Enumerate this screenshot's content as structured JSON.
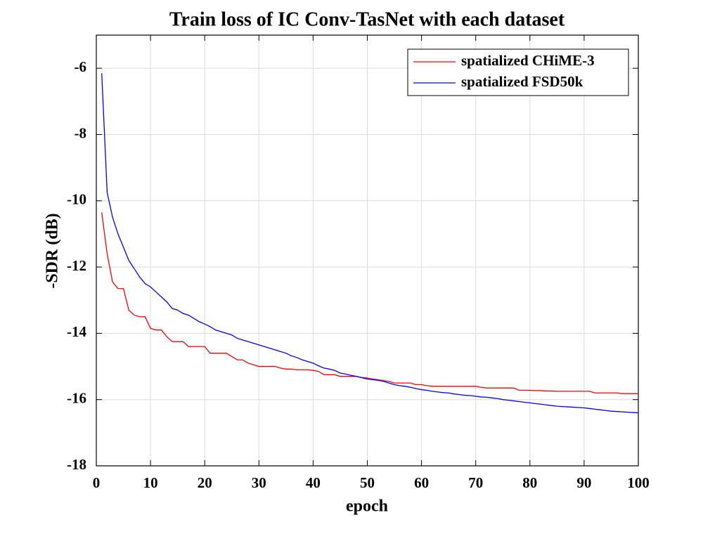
{
  "chart_data": {
    "type": "line",
    "title": "Train loss of IC Conv-TasNet with each dataset",
    "x_label": "epoch",
    "y_label": "-SDR (dB)",
    "x": [
      1,
      2,
      3,
      4,
      5,
      6,
      7,
      8,
      9,
      10,
      11,
      12,
      13,
      14,
      15,
      16,
      17,
      18,
      19,
      20,
      21,
      22,
      23,
      24,
      25,
      26,
      27,
      28,
      29,
      30,
      31,
      32,
      33,
      34,
      35,
      36,
      37,
      38,
      39,
      40,
      41,
      42,
      43,
      44,
      45,
      46,
      47,
      48,
      49,
      50,
      51,
      52,
      53,
      54,
      55,
      56,
      57,
      58,
      59,
      60,
      61,
      62,
      63,
      64,
      65,
      66,
      67,
      68,
      69,
      70,
      71,
      72,
      73,
      74,
      75,
      76,
      77,
      78,
      79,
      80,
      81,
      82,
      83,
      84,
      85,
      86,
      87,
      88,
      89,
      90,
      91,
      92,
      93,
      94,
      95,
      96,
      97,
      98,
      99,
      100
    ],
    "series": [
      {
        "name": "spatialized CHiME-3",
        "color": "#ff0000",
        "values": [
          -10.35,
          -11.6,
          -12.45,
          -12.65,
          -12.65,
          -13.3,
          -13.45,
          -13.5,
          -13.5,
          -13.85,
          -13.9,
          -13.9,
          -14.1,
          -14.25,
          -14.25,
          -14.25,
          -14.4,
          -14.4,
          -14.4,
          -14.4,
          -14.6,
          -14.6,
          -14.6,
          -14.6,
          -14.7,
          -14.8,
          -14.8,
          -14.9,
          -14.95,
          -15.0,
          -15.0,
          -15.0,
          -15.0,
          -15.05,
          -15.08,
          -15.08,
          -15.1,
          -15.1,
          -15.1,
          -15.12,
          -15.15,
          -15.25,
          -15.25,
          -15.25,
          -15.3,
          -15.3,
          -15.3,
          -15.3,
          -15.33,
          -15.35,
          -15.38,
          -15.4,
          -15.43,
          -15.45,
          -15.5,
          -15.5,
          -15.5,
          -15.5,
          -15.55,
          -15.55,
          -15.58,
          -15.6,
          -15.6,
          -15.6,
          -15.6,
          -15.6,
          -15.6,
          -15.6,
          -15.6,
          -15.6,
          -15.63,
          -15.65,
          -15.65,
          -15.65,
          -15.65,
          -15.65,
          -15.65,
          -15.72,
          -15.72,
          -15.72,
          -15.73,
          -15.73,
          -15.74,
          -15.74,
          -15.75,
          -15.75,
          -15.75,
          -15.75,
          -15.75,
          -15.75,
          -15.75,
          -15.8,
          -15.8,
          -15.8,
          -15.8,
          -15.8,
          -15.82,
          -15.82,
          -15.82,
          -15.82
        ]
      },
      {
        "name": "spatialized FSD50k",
        "color": "#0000ff",
        "values": [
          -6.15,
          -9.75,
          -10.5,
          -11.0,
          -11.4,
          -11.8,
          -12.05,
          -12.3,
          -12.5,
          -12.6,
          -12.75,
          -12.9,
          -13.05,
          -13.25,
          -13.3,
          -13.4,
          -13.45,
          -13.55,
          -13.65,
          -13.72,
          -13.8,
          -13.9,
          -13.95,
          -14.0,
          -14.05,
          -14.15,
          -14.2,
          -14.25,
          -14.3,
          -14.35,
          -14.4,
          -14.45,
          -14.5,
          -14.55,
          -14.6,
          -14.68,
          -14.73,
          -14.8,
          -14.85,
          -14.9,
          -14.98,
          -15.05,
          -15.08,
          -15.12,
          -15.2,
          -15.23,
          -15.27,
          -15.3,
          -15.34,
          -15.38,
          -15.4,
          -15.42,
          -15.45,
          -15.5,
          -15.55,
          -15.58,
          -15.6,
          -15.63,
          -15.67,
          -15.7,
          -15.72,
          -15.75,
          -15.77,
          -15.79,
          -15.8,
          -15.83,
          -15.85,
          -15.87,
          -15.88,
          -15.9,
          -15.92,
          -15.93,
          -15.95,
          -15.97,
          -16.0,
          -16.02,
          -16.04,
          -16.06,
          -16.08,
          -16.1,
          -16.12,
          -16.14,
          -16.16,
          -16.18,
          -16.2,
          -16.21,
          -16.22,
          -16.23,
          -16.24,
          -16.25,
          -16.27,
          -16.29,
          -16.31,
          -16.33,
          -16.35,
          -16.36,
          -16.37,
          -16.38,
          -16.39,
          -16.4
        ]
      }
    ],
    "xlim": [
      0,
      100
    ],
    "xticks": [
      0,
      10,
      20,
      30,
      40,
      50,
      60,
      70,
      80,
      90,
      100
    ],
    "ylim": [
      -18,
      -5
    ],
    "yticks": [
      -18,
      -16,
      -14,
      -12,
      -10,
      -8,
      -6
    ],
    "grid": true,
    "legend": "top-right"
  }
}
